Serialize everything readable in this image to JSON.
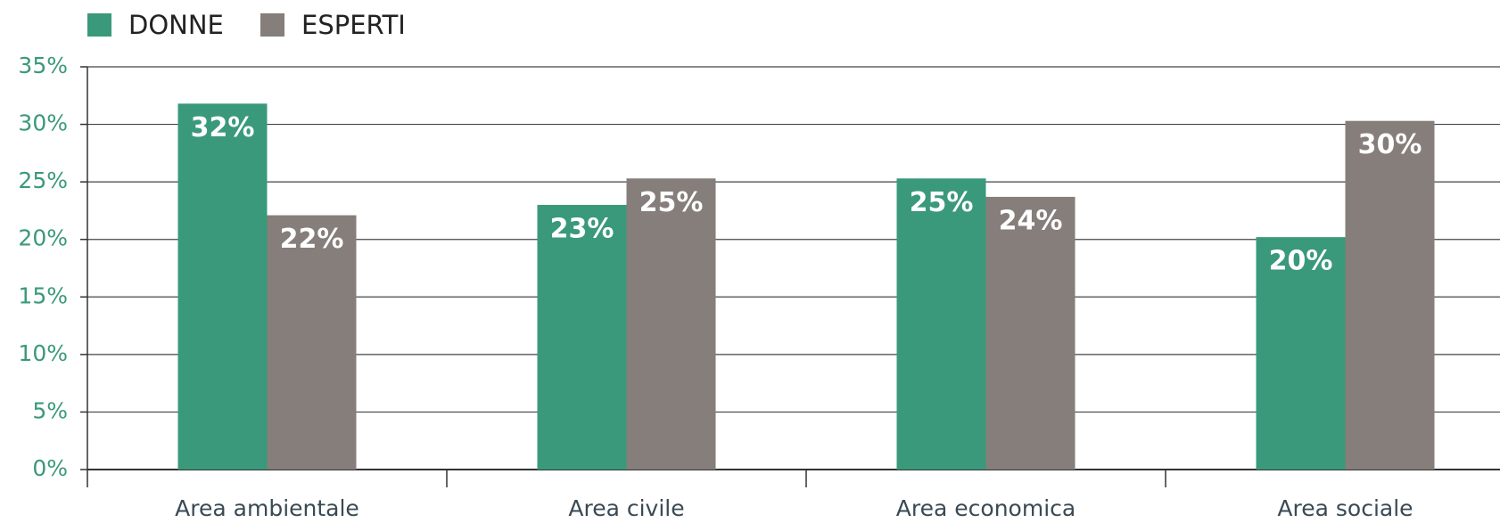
{
  "chart_data": {
    "type": "bar",
    "categories": [
      "Area ambientale",
      "Area civile",
      "Area economica",
      "Area sociale"
    ],
    "series": [
      {
        "name": "DONNE",
        "color": "#3a997b",
        "values": [
          31.8,
          23.0,
          25.3,
          20.2
        ],
        "value_labels": [
          "32%",
          "23%",
          "25%",
          "20%"
        ]
      },
      {
        "name": "ESPERTI",
        "color": "#857e7a",
        "values": [
          22.1,
          25.3,
          23.7,
          30.3
        ],
        "value_labels": [
          "22%",
          "25%",
          "24%",
          "30%"
        ]
      }
    ],
    "ylim": [
      0,
      35
    ],
    "yticks": [
      {
        "value": 0,
        "label": "0%"
      },
      {
        "value": 5,
        "label": "5%"
      },
      {
        "value": 10,
        "label": "10%"
      },
      {
        "value": 15,
        "label": "15%"
      },
      {
        "value": 20,
        "label": "20%"
      },
      {
        "value": 25,
        "label": "25%"
      },
      {
        "value": 30,
        "label": "30%"
      },
      {
        "value": 35,
        "label": "35%"
      }
    ],
    "grid": true,
    "legend": "top-left"
  }
}
